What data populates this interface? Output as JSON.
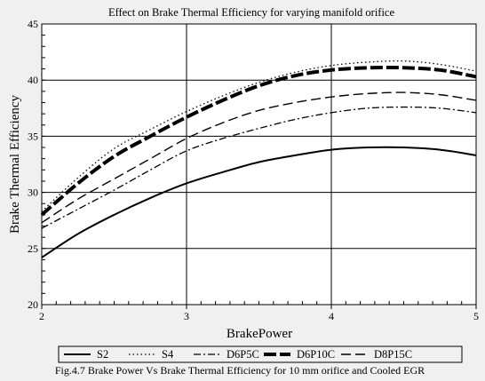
{
  "chart_data": {
    "type": "line",
    "title": "Effect on Brake Thermal Efficiency for varying manifold orifice",
    "xlabel": "BrakePower",
    "ylabel": "Brake Thermal Efficiency",
    "xlim": [
      2,
      5
    ],
    "ylim": [
      20,
      45
    ],
    "xticks": [
      2,
      3,
      4,
      5
    ],
    "yticks": [
      20,
      25,
      30,
      35,
      40,
      45
    ],
    "grid": true,
    "legend_placement": "bottom",
    "caption": "Fig.4.7 Brake Power Vs Brake Thermal Efficiency  for 10 mm orifice and Cooled EGR",
    "x": [
      2.0,
      2.25,
      2.5,
      2.75,
      3.0,
      3.25,
      3.5,
      3.75,
      4.0,
      4.25,
      4.5,
      4.75,
      5.0
    ],
    "series": [
      {
        "name": "S2",
        "style": "solid",
        "color": "#000000",
        "values": [
          24.2,
          26.3,
          28.0,
          29.5,
          30.8,
          31.8,
          32.7,
          33.3,
          33.8,
          34.0,
          34.0,
          33.8,
          33.3
        ]
      },
      {
        "name": "S4",
        "style": "dotted",
        "color": "#000000",
        "values": [
          28.3,
          31.3,
          33.9,
          35.6,
          37.2,
          38.6,
          39.8,
          40.7,
          41.3,
          41.6,
          41.7,
          41.4,
          40.8
        ]
      },
      {
        "name": "D6P5C",
        "style": "dash-dot",
        "color": "#000000",
        "values": [
          26.8,
          28.5,
          30.2,
          32.0,
          33.7,
          34.8,
          35.7,
          36.5,
          37.1,
          37.5,
          37.6,
          37.5,
          37.1
        ]
      },
      {
        "name": "D6P10C",
        "style": "thick-dashed",
        "color": "#000000",
        "values": [
          28.0,
          30.8,
          33.2,
          35.0,
          36.7,
          38.2,
          39.5,
          40.4,
          40.9,
          41.1,
          41.1,
          40.9,
          40.3
        ]
      },
      {
        "name": "D8P15C",
        "style": "long-dash",
        "color": "#000000",
        "values": [
          27.3,
          29.4,
          31.2,
          33.0,
          34.8,
          36.2,
          37.3,
          38.0,
          38.5,
          38.8,
          38.9,
          38.7,
          38.2
        ]
      }
    ]
  }
}
